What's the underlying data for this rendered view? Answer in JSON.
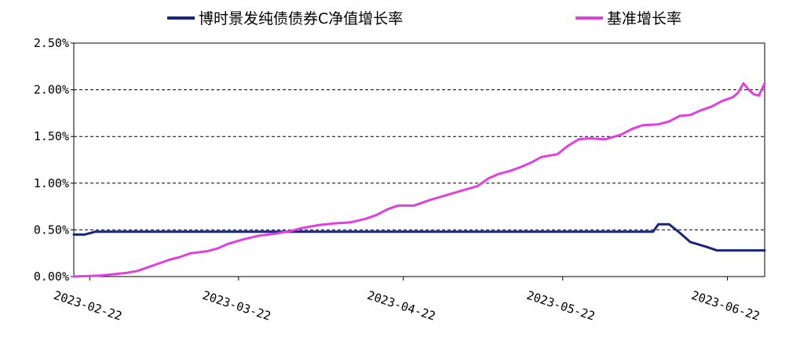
{
  "chart_data": {
    "type": "line",
    "legend_position": "top",
    "grid": "horizontal-dashed",
    "ylim": [
      0,
      2.5
    ],
    "y_ticks": [
      "0.00%",
      "0.50%",
      "1.00%",
      "1.50%",
      "2.00%",
      "2.50%"
    ],
    "x_ticks": [
      "2023-02-22",
      "2023-03-22",
      "2023-04-22",
      "2023-05-22",
      "2023-06-22"
    ],
    "x_range": [
      "2023-02-19",
      "2023-06-29"
    ],
    "series": [
      {
        "name": "博时景发纯债债券C净值增长率",
        "color": "#1a237e",
        "points": [
          [
            "2023-02-19",
            0.45
          ],
          [
            "2023-02-21",
            0.45
          ],
          [
            "2023-02-23",
            0.48
          ],
          [
            "2023-03-15",
            0.48
          ],
          [
            "2023-04-15",
            0.48
          ],
          [
            "2023-05-15",
            0.48
          ],
          [
            "2023-06-08",
            0.48
          ],
          [
            "2023-06-09",
            0.56
          ],
          [
            "2023-06-11",
            0.56
          ],
          [
            "2023-06-13",
            0.47
          ],
          [
            "2023-06-15",
            0.37
          ],
          [
            "2023-06-18",
            0.32
          ],
          [
            "2023-06-20",
            0.28
          ],
          [
            "2023-06-25",
            0.28
          ],
          [
            "2023-06-29",
            0.28
          ]
        ]
      },
      {
        "name": "基准增长率",
        "color": "#e040e0",
        "points": [
          [
            "2023-02-19",
            0.0
          ],
          [
            "2023-02-24",
            0.01
          ],
          [
            "2023-03-01",
            0.04
          ],
          [
            "2023-03-03",
            0.06
          ],
          [
            "2023-03-06",
            0.12
          ],
          [
            "2023-03-09",
            0.18
          ],
          [
            "2023-03-11",
            0.21
          ],
          [
            "2023-03-13",
            0.25
          ],
          [
            "2023-03-16",
            0.27
          ],
          [
            "2023-03-18",
            0.3
          ],
          [
            "2023-03-20",
            0.35
          ],
          [
            "2023-03-23",
            0.4
          ],
          [
            "2023-03-26",
            0.44
          ],
          [
            "2023-03-29",
            0.46
          ],
          [
            "2023-04-01",
            0.49
          ],
          [
            "2023-04-03",
            0.52
          ],
          [
            "2023-04-06",
            0.55
          ],
          [
            "2023-04-09",
            0.57
          ],
          [
            "2023-04-12",
            0.58
          ],
          [
            "2023-04-15",
            0.62
          ],
          [
            "2023-04-17",
            0.66
          ],
          [
            "2023-04-19",
            0.72
          ],
          [
            "2023-04-21",
            0.76
          ],
          [
            "2023-04-24",
            0.76
          ],
          [
            "2023-04-27",
            0.82
          ],
          [
            "2023-04-30",
            0.87
          ],
          [
            "2023-05-03",
            0.92
          ],
          [
            "2023-05-06",
            0.97
          ],
          [
            "2023-05-08",
            1.05
          ],
          [
            "2023-05-10",
            1.1
          ],
          [
            "2023-05-12",
            1.13
          ],
          [
            "2023-05-14",
            1.17
          ],
          [
            "2023-05-16",
            1.22
          ],
          [
            "2023-05-18",
            1.28
          ],
          [
            "2023-05-21",
            1.31
          ],
          [
            "2023-05-23",
            1.4
          ],
          [
            "2023-05-25",
            1.47
          ],
          [
            "2023-05-27",
            1.48
          ],
          [
            "2023-05-30",
            1.47
          ],
          [
            "2023-06-02",
            1.52
          ],
          [
            "2023-06-04",
            1.58
          ],
          [
            "2023-06-06",
            1.62
          ],
          [
            "2023-06-09",
            1.63
          ],
          [
            "2023-06-11",
            1.66
          ],
          [
            "2023-06-13",
            1.72
          ],
          [
            "2023-06-15",
            1.73
          ],
          [
            "2023-06-17",
            1.78
          ],
          [
            "2023-06-19",
            1.82
          ],
          [
            "2023-06-21",
            1.88
          ],
          [
            "2023-06-23",
            1.92
          ],
          [
            "2023-06-24",
            1.97
          ],
          [
            "2023-06-25",
            2.07
          ],
          [
            "2023-06-26",
            2.0
          ],
          [
            "2023-06-27",
            1.95
          ],
          [
            "2023-06-28",
            1.94
          ],
          [
            "2023-06-28",
            1.95
          ],
          [
            "2023-06-29",
            2.07
          ]
        ]
      }
    ]
  }
}
